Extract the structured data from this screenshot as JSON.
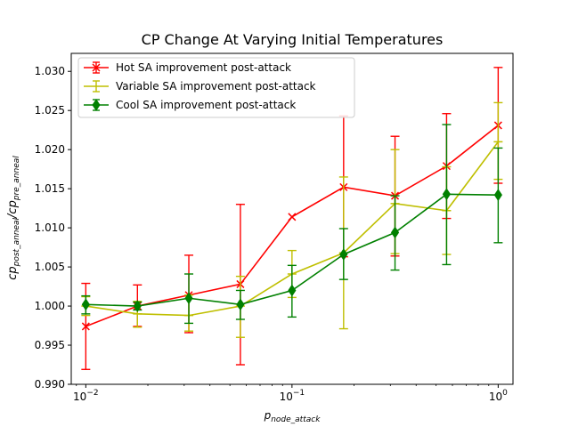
{
  "chart_data": {
    "type": "line",
    "title": "CP Change At Varying Initial Temperatures",
    "xlabel": "p",
    "xlabel_sub": "node_attack",
    "ylabel_lead": "cp",
    "ylabel_sub1": "post_anneal",
    "ylabel_slash": "/cp",
    "ylabel_sub2": "pre_anneal",
    "xscale": "log",
    "xlim": [
      0.0085,
      1.18
    ],
    "ylim": [
      0.99,
      1.0323
    ],
    "x": [
      0.01,
      0.0178,
      0.0316,
      0.0562,
      0.1,
      0.178,
      0.316,
      0.562,
      1.0
    ],
    "x_ticks": [
      {
        "value": 0.01,
        "base": "10",
        "exp": "−2"
      },
      {
        "value": 0.1,
        "base": "10",
        "exp": "−1"
      },
      {
        "value": 1.0,
        "base": "10",
        "exp": "0"
      }
    ],
    "y_ticks": [
      {
        "value": 0.99,
        "label": "0.990"
      },
      {
        "value": 0.995,
        "label": "0.995"
      },
      {
        "value": 1.0,
        "label": "1.000"
      },
      {
        "value": 1.005,
        "label": "1.005"
      },
      {
        "value": 1.01,
        "label": "1.010"
      },
      {
        "value": 1.015,
        "label": "1.015"
      },
      {
        "value": 1.02,
        "label": "1.020"
      },
      {
        "value": 1.025,
        "label": "1.025"
      },
      {
        "value": 1.03,
        "label": "1.030"
      }
    ],
    "legend_position": "upper-left",
    "grid": false,
    "series": [
      {
        "name": "Hot SA improvement post-attack",
        "color": "#ff0000",
        "marker": "x",
        "values": [
          0.9974,
          1.0,
          1.0014,
          1.0028,
          1.0114,
          1.0152,
          1.0141,
          1.0179,
          1.0231
        ],
        "err_low": [
          0.9919,
          0.9974,
          0.9966,
          0.9925,
          null,
          1.0063,
          1.0064,
          1.0112,
          1.0157
        ],
        "err_high": [
          1.0029,
          1.0027,
          1.0065,
          1.013,
          null,
          1.0243,
          1.0217,
          1.0246,
          1.0305
        ]
      },
      {
        "name": "Variable SA improvement post-attack",
        "color": "#bfbf00",
        "marker": "_",
        "values": [
          1.0,
          0.999,
          0.9988,
          1.0,
          1.0041,
          1.0068,
          1.0131,
          1.0122,
          1.021
        ],
        "err_low": [
          0.9988,
          0.9973,
          0.9968,
          0.996,
          1.0011,
          0.9971,
          1.0067,
          1.0066,
          1.0162
        ],
        "err_high": [
          1.0012,
          1.0006,
          1.0014,
          1.0038,
          1.0071,
          1.0165,
          1.02,
          1.0178,
          1.026
        ]
      },
      {
        "name": "Cool SA improvement post-attack",
        "color": "#008000",
        "marker": "d",
        "values": [
          1.0002,
          1.0,
          1.001,
          1.0002,
          1.002,
          1.0066,
          1.0094,
          1.0143,
          1.0142
        ],
        "err_low": [
          0.999,
          0.9995,
          0.9978,
          0.9983,
          0.9986,
          1.0034,
          1.0046,
          1.0053,
          1.0081
        ],
        "err_high": [
          1.0013,
          1.0005,
          1.0041,
          1.002,
          1.0052,
          1.0099,
          1.0141,
          1.0232,
          1.0202
        ]
      }
    ]
  }
}
